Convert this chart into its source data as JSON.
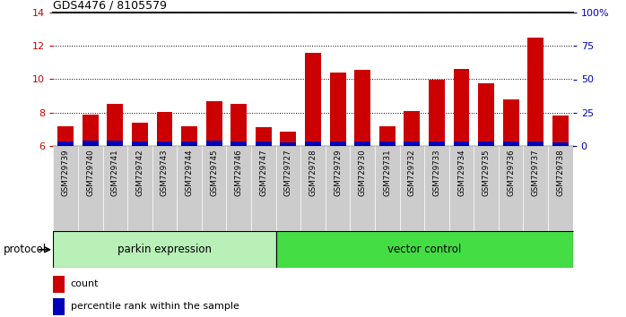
{
  "title": "GDS4476 / 8105579",
  "samples": [
    "GSM729739",
    "GSM729740",
    "GSM729741",
    "GSM729742",
    "GSM729743",
    "GSM729744",
    "GSM729745",
    "GSM729746",
    "GSM729747",
    "GSM729727",
    "GSM729728",
    "GSM729729",
    "GSM729730",
    "GSM729731",
    "GSM729732",
    "GSM729733",
    "GSM729734",
    "GSM729735",
    "GSM729736",
    "GSM729737",
    "GSM729738"
  ],
  "count_values": [
    7.2,
    7.9,
    8.5,
    7.4,
    8.05,
    7.15,
    8.7,
    8.5,
    7.1,
    6.85,
    11.6,
    10.4,
    10.55,
    7.2,
    8.1,
    10.0,
    10.6,
    9.75,
    8.8,
    12.5,
    7.8
  ],
  "percentile_values": [
    0.25,
    0.3,
    0.3,
    0.28,
    0.28,
    0.28,
    0.3,
    0.28,
    0.25,
    0.22,
    0.28,
    0.28,
    0.28,
    0.28,
    0.28,
    0.28,
    0.28,
    0.28,
    0.28,
    0.28,
    0.22
  ],
  "group_labels": [
    "parkin expression",
    "vector control"
  ],
  "group_counts": [
    9,
    12
  ],
  "group_color_light": "#b8f0b8",
  "group_color_dark": "#44dd44",
  "ymin": 6,
  "ymax": 14,
  "yticks_left": [
    6,
    8,
    10,
    12,
    14
  ],
  "yticks_right": [
    0,
    25,
    50,
    75,
    100
  ],
  "bar_color_red": "#cc0000",
  "bar_color_blue": "#0000bb",
  "bar_width": 0.65,
  "tick_label_bg": "#cccccc",
  "protocol_label": "protocol",
  "legend_count": "count",
  "legend_percentile": "percentile rank within the sample"
}
